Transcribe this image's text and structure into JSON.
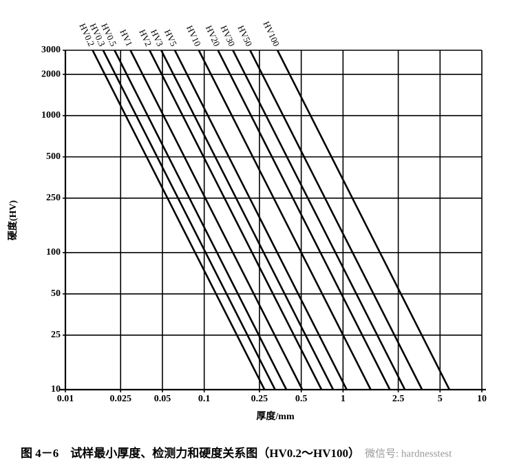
{
  "chart_data": {
    "type": "line",
    "xlabel": "厚度/mm",
    "ylabel": "硬度(HV)",
    "caption": "图 4－6　试样最小厚度、检测力和硬度关系图（HV0.2～HV100）",
    "watermark": "微信号: hardnesstest",
    "xscale": "log",
    "yscale": "log",
    "xlim": [
      0.01,
      10
    ],
    "ylim": [
      10,
      3000
    ],
    "xticks": [
      0.01,
      0.025,
      0.05,
      0.1,
      0.25,
      0.5,
      1,
      2.5,
      5,
      10
    ],
    "yticks": [
      10,
      25,
      50,
      100,
      250,
      500,
      1000,
      2000,
      3000
    ],
    "grid": true,
    "series": [
      {
        "name": "HV0.2",
        "color": "#000000",
        "x": [
          0.0157,
          0.272
        ],
        "values": [
          3000,
          10
        ]
      },
      {
        "name": "HV0.3",
        "color": "#000000",
        "x": [
          0.0187,
          0.324
        ],
        "values": [
          3000,
          10
        ]
      },
      {
        "name": "HV0.5",
        "color": "#000000",
        "x": [
          0.0226,
          0.391
        ],
        "values": [
          3000,
          10
        ]
      },
      {
        "name": "HV1",
        "color": "#000000",
        "x": [
          0.0294,
          0.509
        ],
        "values": [
          3000,
          10
        ]
      },
      {
        "name": "HV2",
        "color": "#000000",
        "x": [
          0.0404,
          0.7
        ],
        "values": [
          3000,
          10
        ]
      },
      {
        "name": "HV3",
        "color": "#000000",
        "x": [
          0.049,
          0.849
        ],
        "values": [
          3000,
          10
        ]
      },
      {
        "name": "HV5",
        "color": "#000000",
        "x": [
          0.0614,
          1.063
        ],
        "values": [
          3000,
          10
        ]
      },
      {
        "name": "HV10",
        "color": "#000000",
        "x": [
          0.0914,
          1.583
        ],
        "values": [
          3000,
          10
        ]
      },
      {
        "name": "HV20",
        "color": "#000000",
        "x": [
          0.1256,
          2.175
        ],
        "values": [
          3000,
          10
        ]
      },
      {
        "name": "HV30",
        "color": "#000000",
        "x": [
          0.161,
          2.79
        ],
        "values": [
          3000,
          10
        ]
      },
      {
        "name": "HV50",
        "color": "#000000",
        "x": [
          0.214,
          3.71
        ],
        "values": [
          3000,
          10
        ]
      },
      {
        "name": "HV100",
        "color": "#000000",
        "x": [
          0.337,
          5.84
        ],
        "values": [
          3000,
          10
        ]
      }
    ]
  }
}
